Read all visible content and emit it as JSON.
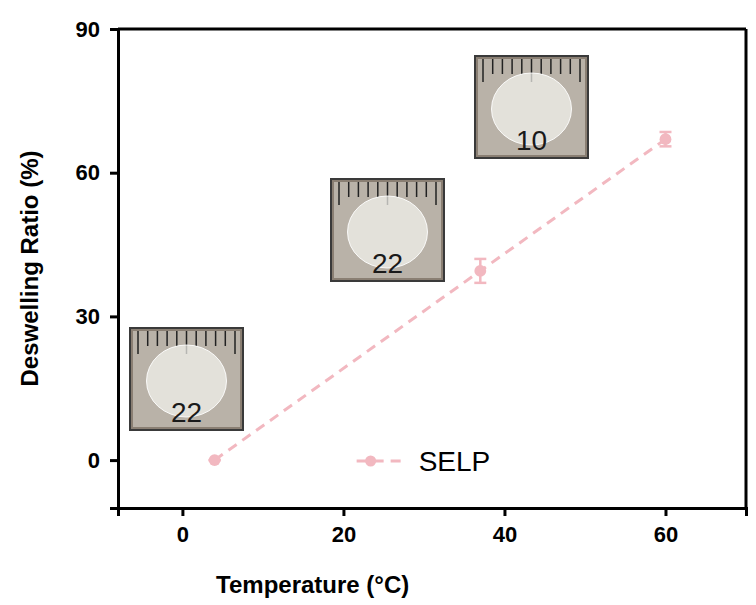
{
  "chart_data": {
    "type": "line",
    "x_label": "Temperature (°C)",
    "y_label": "Deswelling Ratio (%)",
    "x": [
      4,
      37,
      60
    ],
    "series": [
      {
        "name": "SELP",
        "color": "#f2b8c0",
        "marker": "circle",
        "line_style": "dashed",
        "values": [
          0,
          39.5,
          67
        ],
        "errors": [
          0,
          2.5,
          1.5
        ]
      }
    ],
    "xlim": [
      -8,
      70
    ],
    "xticks": [
      0,
      20,
      40,
      60
    ],
    "ylim": [
      -10,
      90
    ],
    "yticks": [
      0,
      30,
      60,
      90
    ],
    "legend": "bottom",
    "annotations": [
      "22",
      "22",
      "10"
    ]
  }
}
